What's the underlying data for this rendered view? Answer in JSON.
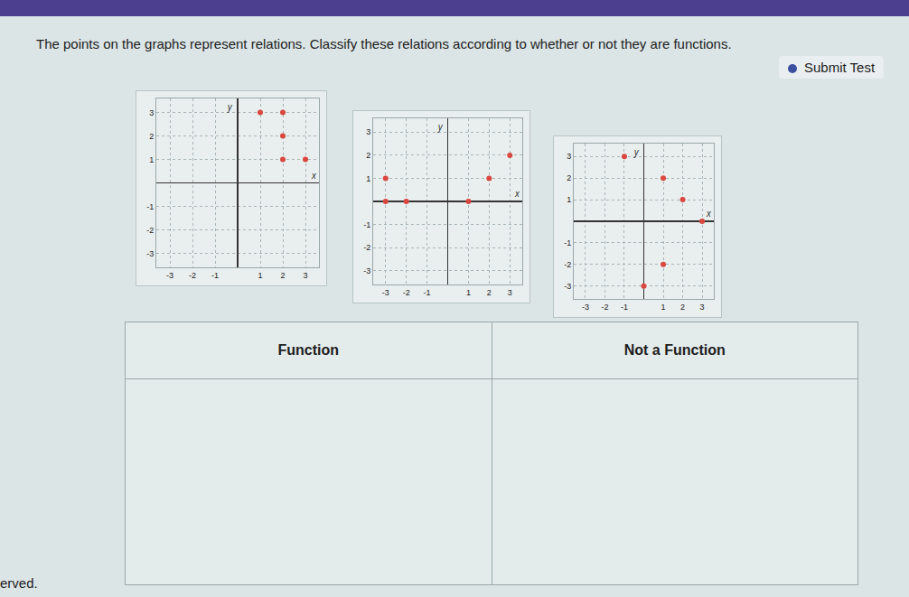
{
  "header": {
    "button": "Submit Test"
  },
  "instructions": "The points on the graphs represent relations. Classify these relations according to whether or not they are functions.",
  "chart_data": [
    {
      "type": "scatter",
      "x": [
        1,
        2,
        2,
        2,
        3
      ],
      "values": [
        3,
        3,
        2,
        1,
        1
      ],
      "color": "#d9473f",
      "xlabel": "x",
      "ylabel": "y",
      "xlim": [
        -3.6,
        3.6
      ],
      "ylim": [
        -3.6,
        3.6
      ],
      "xticks": [
        -3,
        -2,
        -1,
        1,
        2,
        3
      ],
      "yticks": [
        -3,
        -2,
        -1,
        1,
        2,
        3
      ],
      "grid": true
    },
    {
      "type": "scatter",
      "x": [
        -3,
        -3,
        -2,
        1,
        2,
        3
      ],
      "values": [
        1,
        0,
        0,
        0,
        1,
        2
      ],
      "color": "#d9473f",
      "xlabel": "x",
      "ylabel": "y",
      "xlim": [
        -3.6,
        3.6
      ],
      "ylim": [
        -3.6,
        3.6
      ],
      "xticks": [
        -3,
        -2,
        -1,
        1,
        2,
        3
      ],
      "yticks": [
        -3,
        -2,
        -1,
        1,
        2,
        3
      ],
      "grid": true
    },
    {
      "type": "scatter",
      "x": [
        -1,
        1,
        2,
        3,
        1,
        0
      ],
      "values": [
        3,
        2,
        1,
        0,
        -2,
        -3
      ],
      "color": "#d9473f",
      "xlabel": "x",
      "ylabel": "y",
      "xlim": [
        -3.6,
        3.6
      ],
      "ylim": [
        -3.6,
        3.6
      ],
      "xticks": [
        -3,
        -2,
        -1,
        1,
        2,
        3
      ],
      "yticks": [
        -3,
        -2,
        -1,
        1,
        2,
        3
      ],
      "grid": true
    }
  ],
  "table": {
    "columns": [
      "Function",
      "Not a Function"
    ]
  },
  "footer": "erved."
}
